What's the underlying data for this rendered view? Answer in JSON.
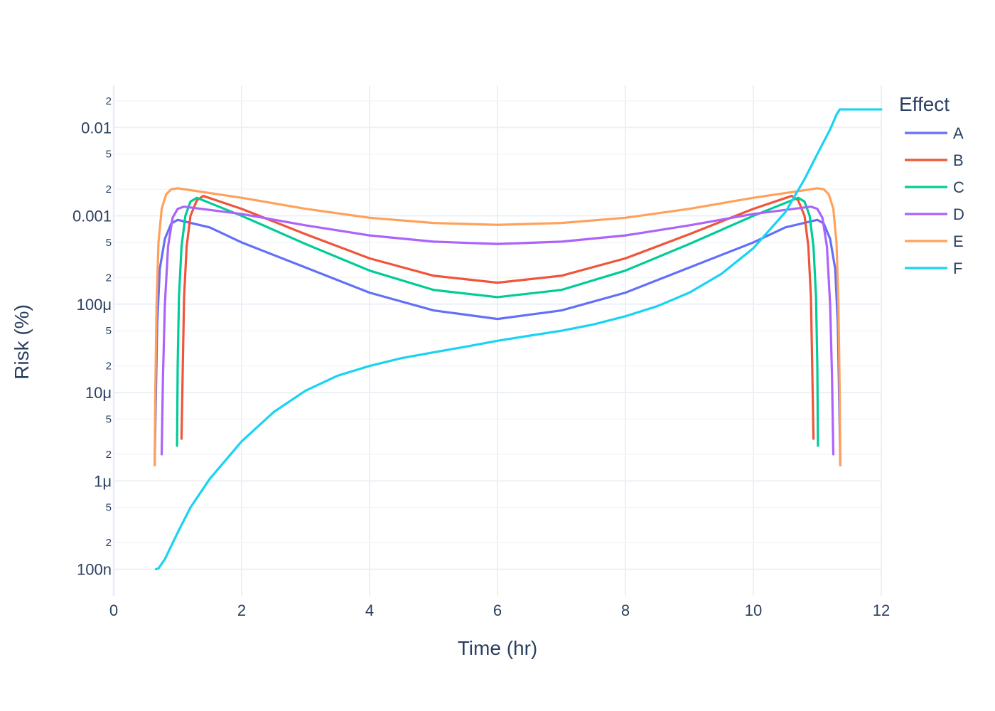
{
  "chart_data": {
    "type": "line",
    "xlabel": "Time (hr)",
    "ylabel": "Risk (%)",
    "x_scale": "linear",
    "y_scale": "log",
    "xlim": [
      0,
      12
    ],
    "ylim": [
      5e-08,
      0.03
    ],
    "x_ticks": [
      {
        "value": 0,
        "label": "0"
      },
      {
        "value": 2,
        "label": "2"
      },
      {
        "value": 4,
        "label": "4"
      },
      {
        "value": 6,
        "label": "6"
      },
      {
        "value": 8,
        "label": "8"
      },
      {
        "value": 10,
        "label": "10"
      },
      {
        "value": 12,
        "label": "12"
      }
    ],
    "y_major_ticks": [
      {
        "value": 1e-07,
        "label": "100n"
      },
      {
        "value": 1e-06,
        "label": "1μ"
      },
      {
        "value": 1e-05,
        "label": "10μ"
      },
      {
        "value": 0.0001,
        "label": "100μ"
      },
      {
        "value": 0.001,
        "label": "0.001"
      },
      {
        "value": 0.01,
        "label": "0.01"
      }
    ],
    "y_minor_ticks": [
      {
        "value": 2e-07,
        "label": "2"
      },
      {
        "value": 5e-07,
        "label": "5"
      },
      {
        "value": 2e-06,
        "label": "2"
      },
      {
        "value": 5e-06,
        "label": "5"
      },
      {
        "value": 2e-05,
        "label": "2"
      },
      {
        "value": 5e-05,
        "label": "5"
      },
      {
        "value": 0.0002,
        "label": "2"
      },
      {
        "value": 0.0005,
        "label": "5"
      },
      {
        "value": 0.002,
        "label": "2"
      },
      {
        "value": 0.005,
        "label": "5"
      },
      {
        "value": 0.02,
        "label": "2"
      }
    ],
    "grid": true,
    "legend": {
      "title": "Effect",
      "placement": "top-right"
    },
    "series": [
      {
        "name": "A",
        "color": "#636efa",
        "points": [
          [
            0.64,
            1.5e-06
          ],
          [
            0.66,
            1e-05
          ],
          [
            0.68,
            6e-05
          ],
          [
            0.72,
            0.00025
          ],
          [
            0.8,
            0.00055
          ],
          [
            0.9,
            0.00082
          ],
          [
            1.0,
            0.0009
          ],
          [
            1.5,
            0.00074
          ],
          [
            2.0,
            0.0005
          ],
          [
            3.0,
            0.00026
          ],
          [
            4.0,
            0.000135
          ],
          [
            5.0,
            8.5e-05
          ],
          [
            6.0,
            6.8e-05
          ],
          [
            7.0,
            8.5e-05
          ],
          [
            8.0,
            0.000135
          ],
          [
            9.0,
            0.00026
          ],
          [
            10.0,
            0.0005
          ],
          [
            10.5,
            0.00074
          ],
          [
            11.0,
            0.0009
          ],
          [
            11.1,
            0.00082
          ],
          [
            11.2,
            0.00055
          ],
          [
            11.28,
            0.00025
          ],
          [
            11.32,
            6e-05
          ],
          [
            11.34,
            1e-05
          ],
          [
            11.36,
            1.5e-06
          ]
        ]
      },
      {
        "name": "B",
        "color": "#EF553B",
        "points": [
          [
            1.06,
            3e-06
          ],
          [
            1.08,
            2e-05
          ],
          [
            1.1,
            0.00012
          ],
          [
            1.14,
            0.00045
          ],
          [
            1.2,
            0.001
          ],
          [
            1.3,
            0.0015
          ],
          [
            1.4,
            0.00168
          ],
          [
            2.0,
            0.0012
          ],
          [
            3.0,
            0.00062
          ],
          [
            4.0,
            0.00033
          ],
          [
            5.0,
            0.00021
          ],
          [
            6.0,
            0.000175
          ],
          [
            7.0,
            0.00021
          ],
          [
            8.0,
            0.00033
          ],
          [
            9.0,
            0.00062
          ],
          [
            10.0,
            0.0012
          ],
          [
            10.6,
            0.00168
          ],
          [
            10.7,
            0.0015
          ],
          [
            10.8,
            0.001
          ],
          [
            10.86,
            0.00045
          ],
          [
            10.9,
            0.00012
          ],
          [
            10.92,
            2e-05
          ],
          [
            10.94,
            3e-06
          ]
        ]
      },
      {
        "name": "C",
        "color": "#00cc96",
        "points": [
          [
            0.99,
            2.5e-06
          ],
          [
            1.0,
            2e-05
          ],
          [
            1.02,
            0.00012
          ],
          [
            1.06,
            0.00045
          ],
          [
            1.12,
            0.001
          ],
          [
            1.2,
            0.00145
          ],
          [
            1.3,
            0.0016
          ],
          [
            2.0,
            0.001
          ],
          [
            3.0,
            0.00048
          ],
          [
            4.0,
            0.00024
          ],
          [
            5.0,
            0.000145
          ],
          [
            6.0,
            0.00012
          ],
          [
            7.0,
            0.000145
          ],
          [
            8.0,
            0.00024
          ],
          [
            9.0,
            0.00048
          ],
          [
            10.0,
            0.001
          ],
          [
            10.7,
            0.0016
          ],
          [
            10.8,
            0.00145
          ],
          [
            10.88,
            0.001
          ],
          [
            10.94,
            0.00045
          ],
          [
            10.98,
            0.00012
          ],
          [
            11.0,
            2e-05
          ],
          [
            11.01,
            2.5e-06
          ]
        ]
      },
      {
        "name": "D",
        "color": "#ab63fa",
        "points": [
          [
            0.75,
            2e-06
          ],
          [
            0.77,
            1.5e-05
          ],
          [
            0.8,
            0.0001
          ],
          [
            0.85,
            0.00045
          ],
          [
            0.92,
            0.00095
          ],
          [
            1.0,
            0.0012
          ],
          [
            1.1,
            0.00127
          ],
          [
            2.0,
            0.00105
          ],
          [
            3.0,
            0.00078
          ],
          [
            4.0,
            0.0006
          ],
          [
            5.0,
            0.00051
          ],
          [
            6.0,
            0.00048
          ],
          [
            7.0,
            0.00051
          ],
          [
            8.0,
            0.0006
          ],
          [
            9.0,
            0.00078
          ],
          [
            10.0,
            0.00105
          ],
          [
            10.9,
            0.00127
          ],
          [
            11.0,
            0.0012
          ],
          [
            11.08,
            0.00095
          ],
          [
            11.15,
            0.00045
          ],
          [
            11.2,
            0.0001
          ],
          [
            11.23,
            1.5e-05
          ],
          [
            11.25,
            2e-06
          ]
        ]
      },
      {
        "name": "E",
        "color": "#FFA15A",
        "points": [
          [
            0.64,
            1.5e-06
          ],
          [
            0.65,
            1e-05
          ],
          [
            0.67,
            0.0001
          ],
          [
            0.7,
            0.0005
          ],
          [
            0.75,
            0.0012
          ],
          [
            0.82,
            0.00175
          ],
          [
            0.9,
            0.002
          ],
          [
            1.0,
            0.00205
          ],
          [
            2.0,
            0.0016
          ],
          [
            3.0,
            0.0012
          ],
          [
            4.0,
            0.00095
          ],
          [
            5.0,
            0.00083
          ],
          [
            6.0,
            0.00079
          ],
          [
            7.0,
            0.00083
          ],
          [
            8.0,
            0.00095
          ],
          [
            9.0,
            0.0012
          ],
          [
            10.0,
            0.0016
          ],
          [
            11.0,
            0.00205
          ],
          [
            11.1,
            0.002
          ],
          [
            11.18,
            0.00175
          ],
          [
            11.25,
            0.0012
          ],
          [
            11.3,
            0.0005
          ],
          [
            11.33,
            0.0001
          ],
          [
            11.35,
            1e-05
          ],
          [
            11.36,
            1.5e-06
          ]
        ]
      },
      {
        "name": "F",
        "color": "#19d3f3",
        "points": [
          [
            0.66,
            1e-07
          ],
          [
            0.7,
            1.02e-07
          ],
          [
            0.8,
            1.3e-07
          ],
          [
            1.0,
            2.6e-07
          ],
          [
            1.2,
            5e-07
          ],
          [
            1.5,
            1.05e-06
          ],
          [
            2.0,
            2.8e-06
          ],
          [
            2.5,
            6e-06
          ],
          [
            3.0,
            1.05e-05
          ],
          [
            3.5,
            1.55e-05
          ],
          [
            4.0,
            2e-05
          ],
          [
            4.5,
            2.45e-05
          ],
          [
            5.0,
            2.85e-05
          ],
          [
            5.5,
            3.3e-05
          ],
          [
            6.0,
            3.85e-05
          ],
          [
            6.5,
            4.4e-05
          ],
          [
            7.0,
            5e-05
          ],
          [
            7.5,
            5.9e-05
          ],
          [
            8.0,
            7.3e-05
          ],
          [
            8.5,
            9.5e-05
          ],
          [
            9.0,
            0.000135
          ],
          [
            9.5,
            0.00022
          ],
          [
            10.0,
            0.00043
          ],
          [
            10.5,
            0.0011
          ],
          [
            10.8,
            0.0026
          ],
          [
            11.0,
            0.005
          ],
          [
            11.2,
            0.0095
          ],
          [
            11.3,
            0.014
          ],
          [
            11.35,
            0.016
          ],
          [
            12.0,
            0.016
          ]
        ]
      }
    ]
  }
}
